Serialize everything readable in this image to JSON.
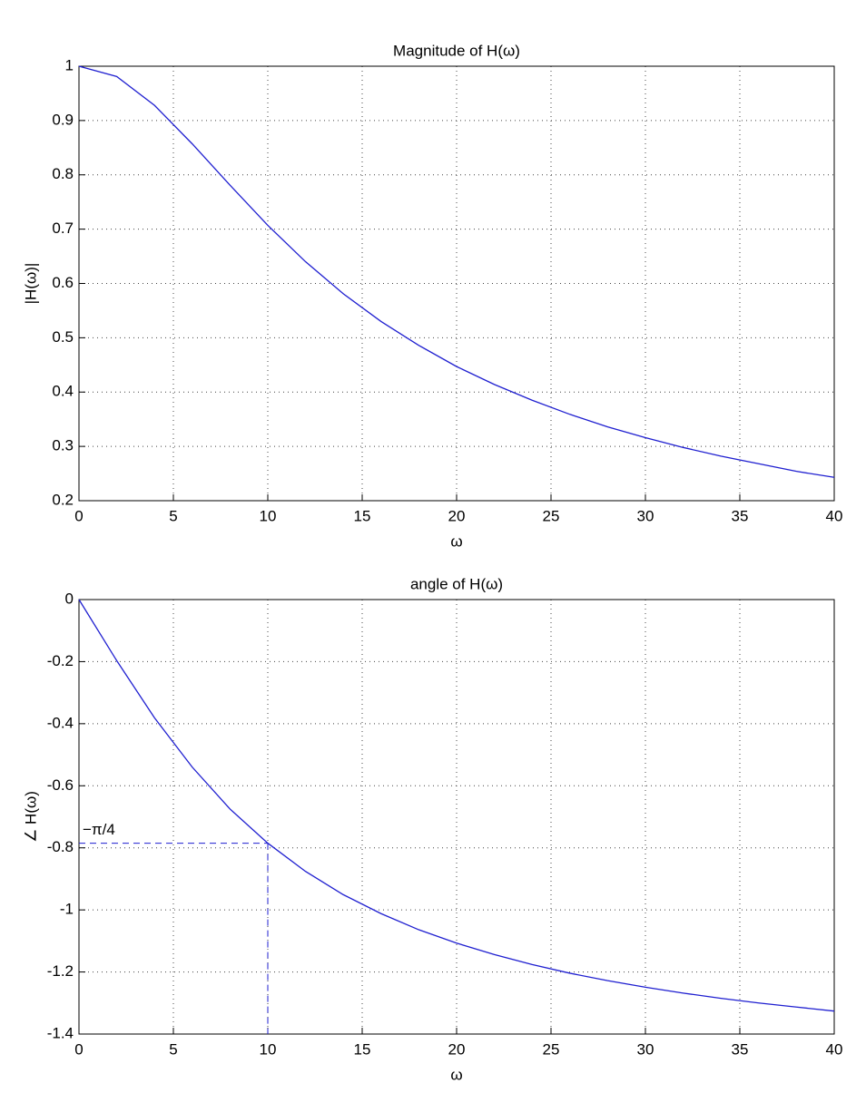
{
  "chart_data": [
    {
      "type": "line",
      "title": "Magnitude of H(ω)",
      "x_label": "ω",
      "y_label": "|H(ω)|",
      "color": "#1f1fd0",
      "grid": true,
      "x": [
        0,
        2,
        4,
        6,
        8,
        10,
        12,
        14,
        16,
        18,
        20,
        22,
        24,
        26,
        28,
        30,
        32,
        34,
        36,
        38,
        40
      ],
      "values": [
        1,
        0.981,
        0.928,
        0.857,
        0.781,
        0.707,
        0.64,
        0.581,
        0.53,
        0.486,
        0.447,
        0.414,
        0.385,
        0.359,
        0.336,
        0.316,
        0.298,
        0.282,
        0.268,
        0.254,
        0.243
      ],
      "xlim": [
        0,
        40
      ],
      "xticks": [
        0,
        5,
        10,
        15,
        20,
        25,
        30,
        35,
        40
      ],
      "ylim": [
        0.2,
        1
      ],
      "yticks": [
        0.2,
        0.3,
        0.4,
        0.5,
        0.6,
        0.7,
        0.8,
        0.9,
        1
      ]
    },
    {
      "type": "line",
      "title": "angle of H(ω)",
      "x_label": "ω",
      "y_label": "∠ H(ω)",
      "color": "#1f1fd0",
      "grid": true,
      "x": [
        0,
        2,
        4,
        6,
        8,
        10,
        12,
        14,
        16,
        18,
        20,
        22,
        24,
        26,
        28,
        30,
        32,
        34,
        36,
        38,
        40
      ],
      "values": [
        0,
        -0.197,
        -0.381,
        -0.54,
        -0.675,
        -0.785,
        -0.876,
        -0.951,
        -1.012,
        -1.064,
        -1.107,
        -1.144,
        -1.176,
        -1.204,
        -1.228,
        -1.249,
        -1.268,
        -1.285,
        -1.3,
        -1.313,
        -1.326
      ],
      "xlim": [
        0,
        40
      ],
      "xticks": [
        0,
        5,
        10,
        15,
        20,
        25,
        30,
        35,
        40
      ],
      "ylim": [
        -1.4,
        0
      ],
      "yticks": [
        -1.4,
        -1.2,
        -1,
        -0.8,
        -0.6,
        -0.4,
        -0.2,
        0
      ],
      "annotations": [
        {
          "text": "−π/4",
          "x": 10,
          "y": -0.785
        }
      ]
    }
  ]
}
